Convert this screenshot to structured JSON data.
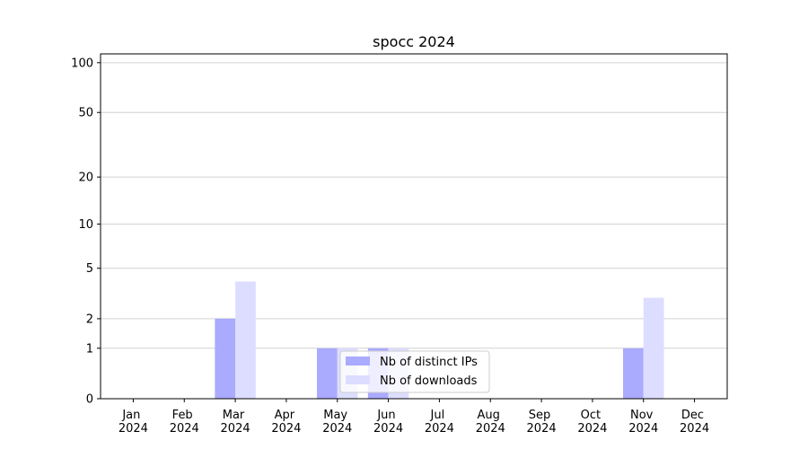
{
  "chart_data": {
    "type": "bar",
    "title": "spocc 2024",
    "categories": [
      "Jan 2024",
      "Feb 2024",
      "Mar 2024",
      "Apr 2024",
      "May 2024",
      "Jun 2024",
      "Jul 2024",
      "Aug 2024",
      "Sep 2024",
      "Oct 2024",
      "Nov 2024",
      "Dec 2024"
    ],
    "series": [
      {
        "name": "Nb of distinct IPs",
        "color": "#aaaaff",
        "values": [
          0,
          0,
          2,
          0,
          1,
          1,
          0,
          0,
          0,
          0,
          1,
          0
        ]
      },
      {
        "name": "Nb of downloads",
        "color": "#ddddff",
        "values": [
          0,
          0,
          4,
          0,
          1,
          1,
          0,
          0,
          0,
          0,
          3,
          0
        ]
      }
    ],
    "yscale": "symlog",
    "ylim": [
      0,
      113
    ],
    "yticks": [
      0,
      1,
      2,
      5,
      10,
      20,
      50,
      100
    ],
    "grid": true,
    "legend": "lower center"
  }
}
